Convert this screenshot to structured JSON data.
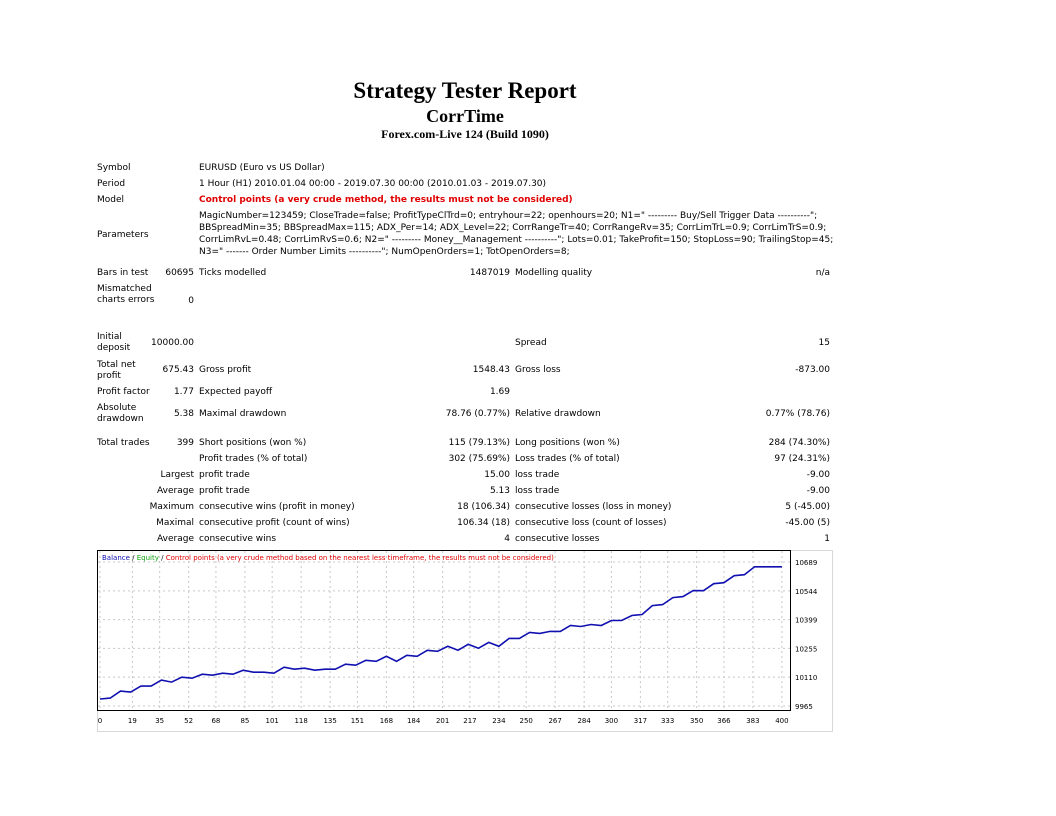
{
  "header": {
    "title": "Strategy Tester Report",
    "expert": "CorrTime",
    "server": "Forex.com-Live 124 (Build 1090)"
  },
  "settings": {
    "symbol_label": "Symbol",
    "symbol_value": "EURUSD (Euro vs US Dollar)",
    "period_label": "Period",
    "period_value": "1 Hour (H1) 2010.01.04 00:00 - 2019.07.30 00:00 (2010.01.03 - 2019.07.30)",
    "model_label": "Model",
    "model_value": "Control points (a very crude method, the results must not be considered)",
    "parameters_label": "Parameters",
    "parameters_lines": [
      "MagicNumber=123459; CloseTrade=false; ProfitTypeClTrd=0; entryhour=22; openhours=20; N1=\" --------- Buy/Sell Trigger Data ----------\";",
      "BBSpreadMin=35; BBSpreadMax=115; ADX_Per=14; ADX_Level=22; CorrRangeTr=40; CorrRangeRv=35; CorrLimTrL=0.9; CorrLimTrS=0.9;",
      "CorrLimRvL=0.48; CorrLimRvS=0.6; N2=\" --------- Money__Management ----------\"; Lots=0.01; TakeProfit=150; StopLoss=90; TrailingStop=45;",
      "N3=\" ------- Order Number Limits ----------\"; NumOpenOrders=1; TotOpenOrders=8;"
    ]
  },
  "quality": {
    "bars_label": "Bars in test",
    "bars_value": "60695",
    "ticks_label": "Ticks modelled",
    "ticks_value": "1487019",
    "modelling_label": "Modelling quality",
    "modelling_value": "n/a",
    "mismatched_label": "Mismatched charts errors",
    "mismatched_value": "0"
  },
  "results": {
    "initial_deposit_label": "Initial deposit",
    "initial_deposit_value": "10000.00",
    "spread_label": "Spread",
    "spread_value": "15",
    "total_net_profit_label": "Total net profit",
    "total_net_profit_value": "675.43",
    "gross_profit_label": "Gross profit",
    "gross_profit_value": "1548.43",
    "gross_loss_label": "Gross loss",
    "gross_loss_value": "-873.00",
    "profit_factor_label": "Profit factor",
    "profit_factor_value": "1.77",
    "expected_payoff_label": "Expected payoff",
    "expected_payoff_value": "1.69",
    "absolute_drawdown_label": "Absolute drawdown",
    "absolute_drawdown_value": "5.38",
    "maximal_drawdown_label": "Maximal drawdown",
    "maximal_drawdown_value": "78.76 (0.77%)",
    "relative_drawdown_label": "Relative drawdown",
    "relative_drawdown_value": "0.77% (78.76)",
    "total_trades_label": "Total trades",
    "total_trades_value": "399",
    "short_label": "Short positions (won %)",
    "short_value": "115 (79.13%)",
    "long_label": "Long positions (won %)",
    "long_value": "284 (74.30%)",
    "profit_trades_label": "Profit trades (% of total)",
    "profit_trades_value": "302 (75.69%)",
    "loss_trades_label": "Loss trades (% of total)",
    "loss_trades_value": "97 (24.31%)",
    "largest_label": "Largest",
    "average_label": "Average",
    "maximum_label": "Maximum",
    "maximal_label": "Maximal",
    "profit_trade_label": "profit trade",
    "loss_trade_label": "loss trade",
    "largest_profit_value": "15.00",
    "largest_loss_value": "-9.00",
    "average_profit_value": "5.13",
    "average_loss_value": "-9.00",
    "cons_wins_money_label": "consecutive wins (profit in money)",
    "cons_wins_money_value": "18 (106.34)",
    "cons_losses_money_label": "consecutive losses (loss in money)",
    "cons_losses_money_value": "5 (-45.00)",
    "cons_profit_count_label": "consecutive profit (count of wins)",
    "cons_profit_count_value": "106.34 (18)",
    "cons_loss_count_label": "consecutive loss (count of losses)",
    "cons_loss_count_value": "-45.00 (5)",
    "avg_cons_wins_label": "consecutive wins",
    "avg_cons_wins_value": "4",
    "avg_cons_losses_label": "consecutive losses",
    "avg_cons_losses_value": "1"
  },
  "chart_data": {
    "type": "line",
    "legend": {
      "balance": "Balance",
      "sep1": " / ",
      "equity": "Equity",
      "sep2": " / ",
      "note": "Control points (a very crude method based on the nearest less timeframe, the results must not be considered)"
    },
    "x_ticks": [
      0,
      19,
      35,
      52,
      68,
      85,
      101,
      118,
      135,
      151,
      168,
      184,
      201,
      217,
      234,
      250,
      267,
      284,
      300,
      317,
      333,
      350,
      366,
      383,
      400
    ],
    "y_ticks": [
      9965,
      10110,
      10255,
      10399,
      10544,
      10689
    ],
    "xlim": [
      0,
      403
    ],
    "ylim": [
      9965,
      10689
    ],
    "grid": true,
    "colors": {
      "balance": "#1010b0",
      "equity": "#10a010",
      "note": "#e00000",
      "grid": "#c8c8c8"
    },
    "series": [
      {
        "name": "Balance",
        "x": [
          0,
          6,
          12,
          18,
          24,
          30,
          36,
          42,
          48,
          54,
          60,
          66,
          72,
          78,
          84,
          90,
          96,
          102,
          108,
          114,
          120,
          126,
          132,
          138,
          144,
          150,
          156,
          162,
          168,
          174,
          180,
          186,
          192,
          198,
          204,
          210,
          216,
          222,
          228,
          234,
          240,
          246,
          252,
          258,
          264,
          270,
          276,
          282,
          288,
          294,
          300,
          306,
          312,
          318,
          324,
          330,
          336,
          342,
          348,
          354,
          360,
          366,
          372,
          378,
          384,
          390,
          396,
          400
        ],
        "y": [
          10000,
          10020,
          10040,
          10050,
          10065,
          10080,
          10095,
          10100,
          10110,
          10120,
          10125,
          10135,
          10130,
          10140,
          10145,
          10150,
          10135,
          10145,
          10160,
          10165,
          10155,
          10160,
          10150,
          10165,
          10175,
          10185,
          10195,
          10205,
          10215,
          10205,
          10220,
          10230,
          10245,
          10255,
          10265,
          10260,
          10275,
          10270,
          10285,
          10280,
          10305,
          10320,
          10335,
          10345,
          10340,
          10355,
          10370,
          10380,
          10375,
          10385,
          10395,
          10410,
          10420,
          10440,
          10470,
          10490,
          10510,
          10530,
          10545,
          10560,
          10580,
          10600,
          10620,
          10640,
          10665,
          10680,
          10665,
          10680
        ]
      }
    ]
  }
}
